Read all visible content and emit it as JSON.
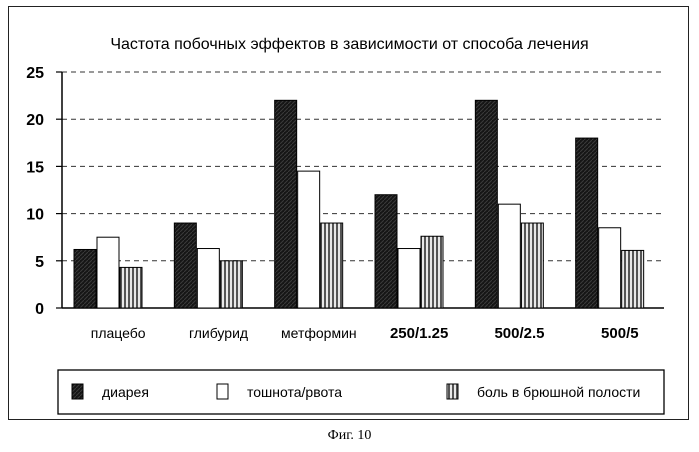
{
  "figure": {
    "caption": "Фиг. 10"
  },
  "chart_data": {
    "type": "bar",
    "title": "Частота побочных эффектов в зависимости от способа лечения",
    "xlabel": "",
    "ylabel": "",
    "ylim": [
      0,
      25
    ],
    "yticks": [
      "0",
      "5",
      "10",
      "15",
      "20",
      "25"
    ],
    "grid": "horizontal dashed",
    "legend_position": "bottom",
    "categories": [
      "плацебо",
      "глибурид",
      "метформин",
      "250/1.25",
      "500/2.5",
      "500/5"
    ],
    "bold_categories": [
      "250/1.25",
      "500/2.5",
      "500/5"
    ],
    "series": [
      {
        "name": "диарея",
        "values": [
          6.2,
          9.0,
          22.0,
          12.0,
          22.0,
          18.0
        ],
        "color": "#1e1e1e",
        "pattern": "dark"
      },
      {
        "name": "тошнота/рвота",
        "values": [
          7.5,
          6.3,
          14.5,
          6.3,
          11.0,
          8.5
        ],
        "color": "#ffffff",
        "pattern": "white"
      },
      {
        "name": "боль в брюшной полости",
        "values": [
          4.3,
          5.0,
          9.0,
          7.6,
          9.0,
          6.1
        ],
        "color": "#9a9a9a",
        "pattern": "striped"
      }
    ]
  }
}
